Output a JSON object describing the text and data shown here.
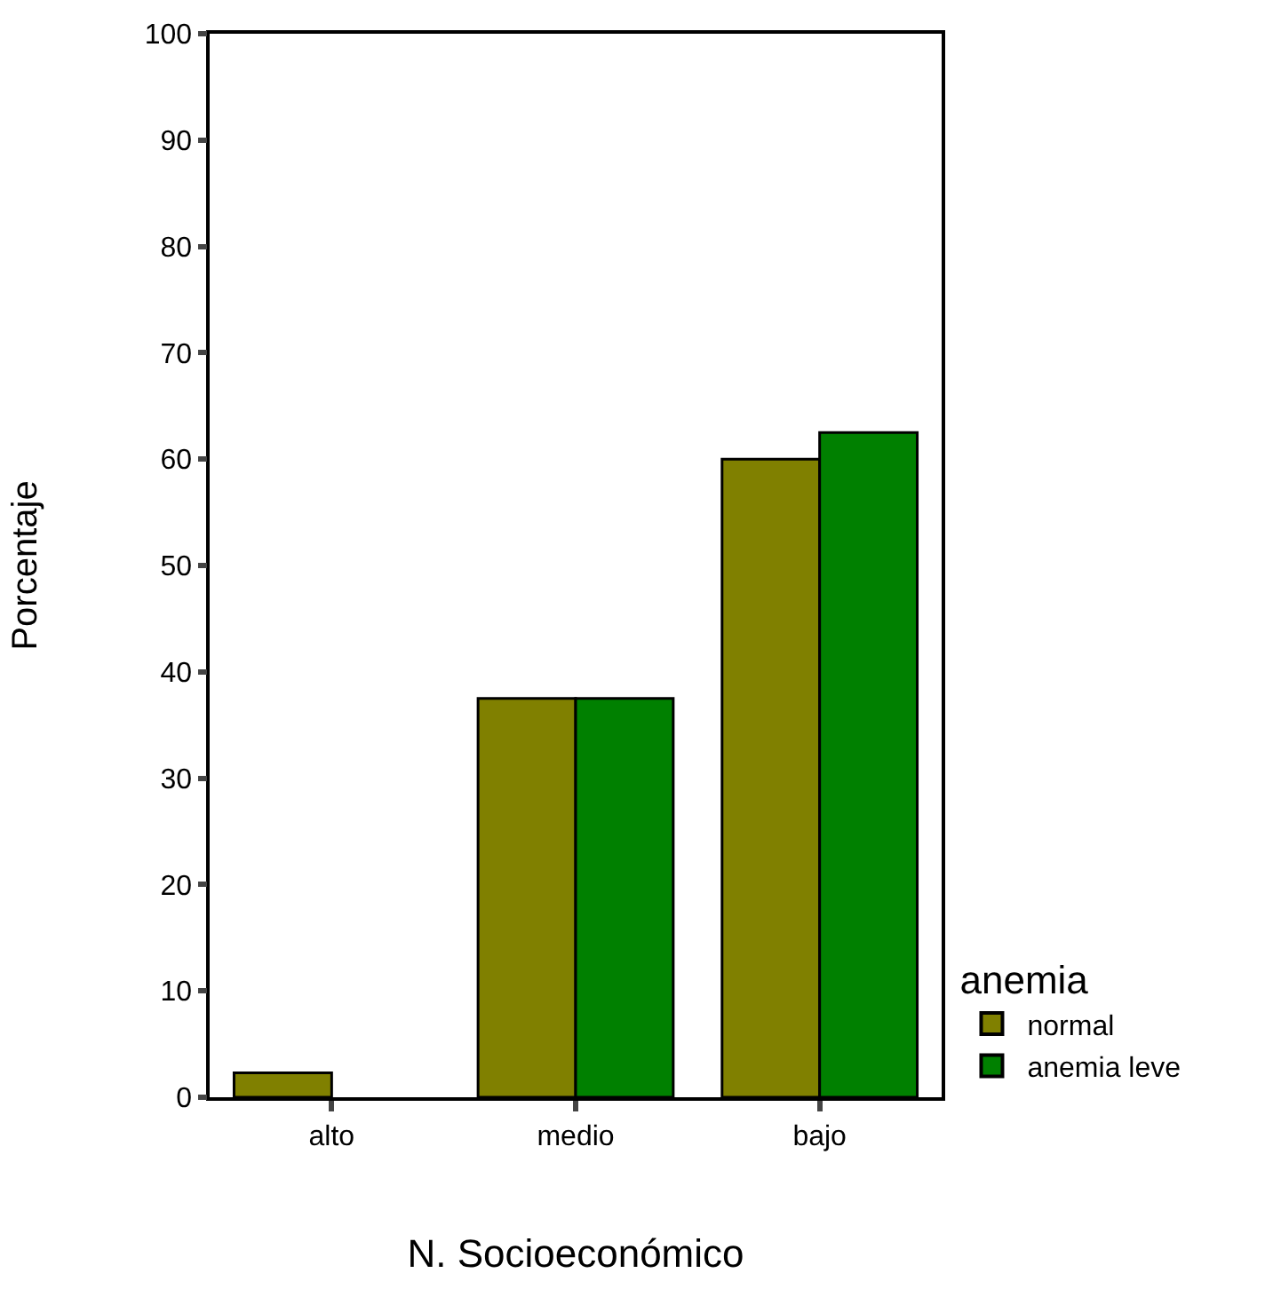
{
  "chart_data": {
    "type": "bar",
    "xlabel": "N. Socioeconómico",
    "ylabel": "Porcentaje",
    "legend_title": "anemia",
    "categories": [
      "alto",
      "medio",
      "bajo"
    ],
    "series": [
      {
        "name": "normal",
        "color": "#808000",
        "values": [
          2.3,
          37.5,
          60
        ]
      },
      {
        "name": "anemia leve",
        "color": "#008000",
        "values": [
          null,
          37.5,
          62.5
        ]
      }
    ],
    "ylim": [
      0,
      100
    ],
    "yticks": [
      0,
      10,
      20,
      30,
      40,
      50,
      60,
      70,
      80,
      90,
      100
    ],
    "legend": "bottom right"
  }
}
